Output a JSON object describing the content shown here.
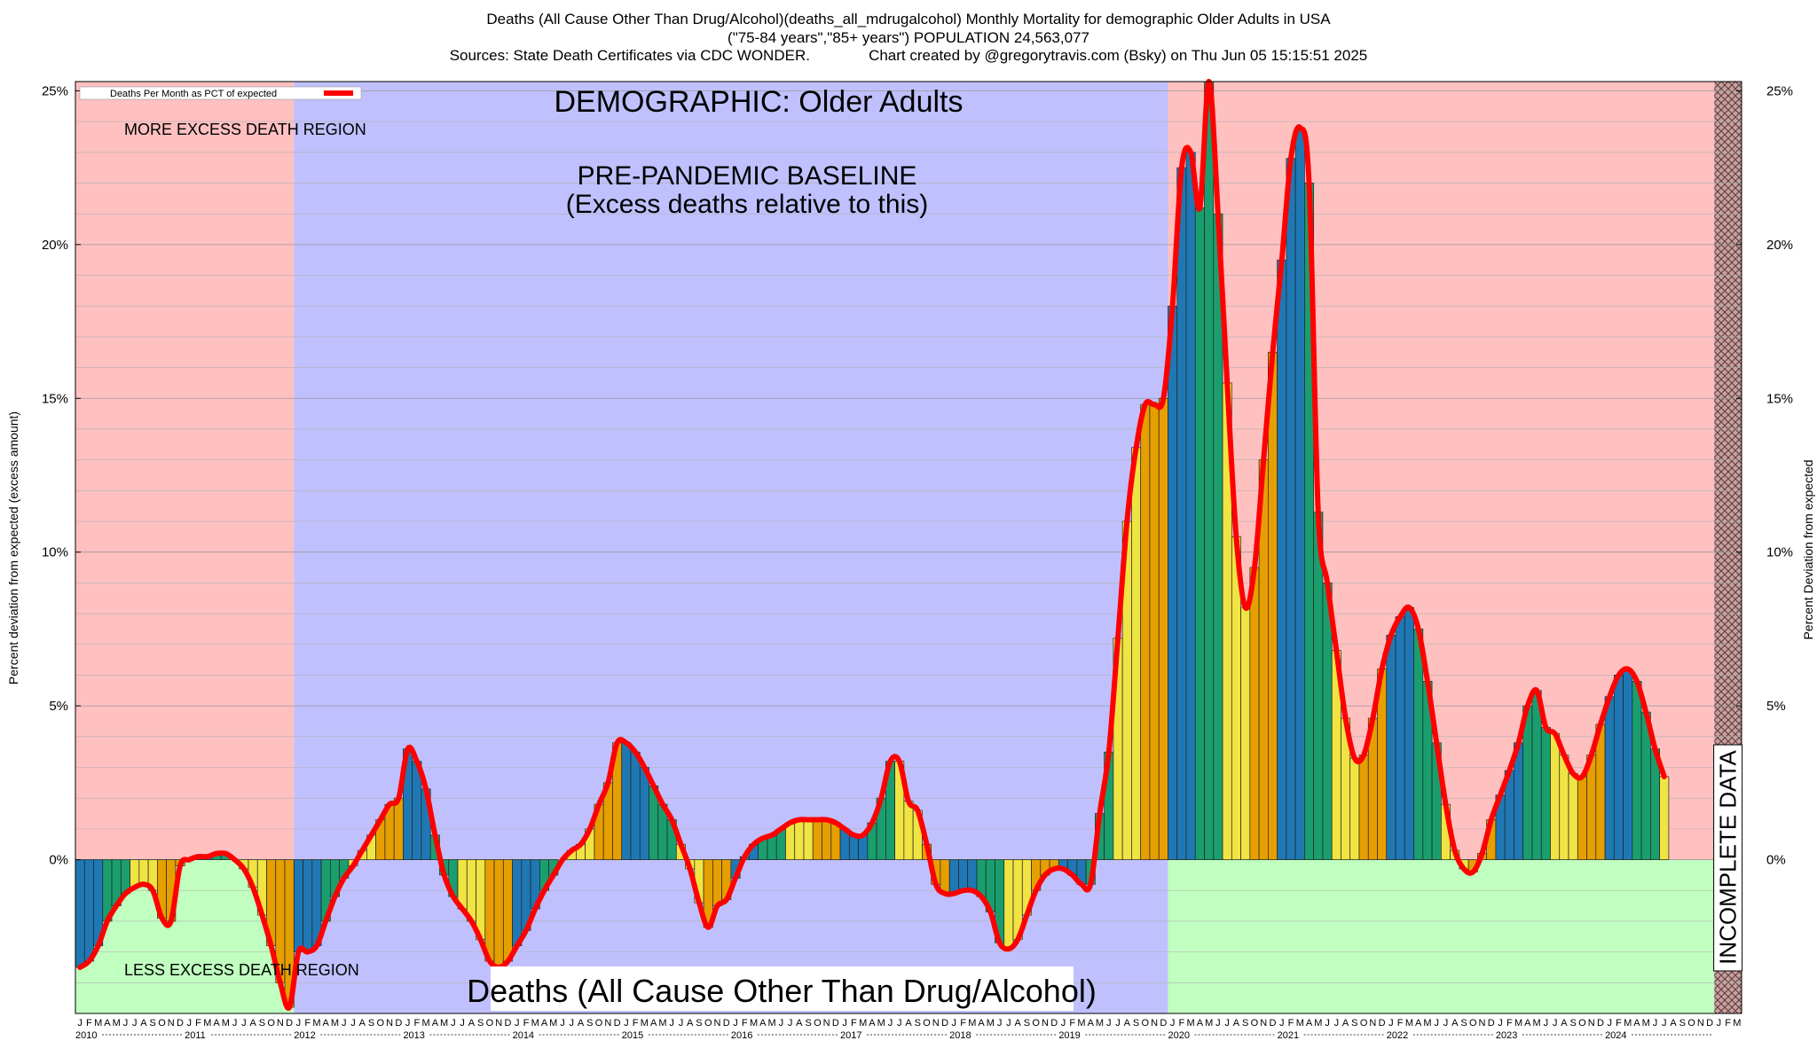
{
  "header": {
    "title_line1": "Deaths (All Cause Other Than Drug/Alcohol)(deaths_all_mdrugalcohol) Monthly Mortality for demographic Older Adults in USA",
    "title_line2": "(\"75-84 years\",\"85+ years\") POPULATION 24,563,077",
    "title_line3": "Sources: State Death Certificates via CDC WONDER.              Chart created by @gregorytravis.com (Bsky) on Thu Jun 05 15:15:51 2025"
  },
  "chart_data": {
    "type": "bar",
    "x_unit": "month",
    "x_start": "2010-01",
    "x_end": "2025-03",
    "xtick_month_letters": [
      "J",
      "F",
      "M",
      "A",
      "M",
      "J",
      "J",
      "A",
      "S",
      "O",
      "N",
      "D"
    ],
    "year_labels": [
      "2010",
      "2011",
      "2012",
      "2013",
      "2014",
      "2015",
      "2016",
      "2017",
      "2018",
      "2019",
      "2020",
      "2021",
      "2022",
      "2023",
      "2024"
    ],
    "ylabel_left": "Percent deviation from expected (excess amount)",
    "ylabel_right": "Percent Deviation from expected",
    "ylim": [
      -5,
      25.3
    ],
    "yticks": [
      0,
      5,
      10,
      15,
      20,
      25
    ],
    "ytick_labels": [
      "0%",
      "5%",
      "10%",
      "15%",
      "20%",
      "25%"
    ],
    "grid": true,
    "legend": {
      "label": "Deaths Per Month as PCT of expected",
      "color": "#ff0000",
      "placement": "top-left"
    },
    "bar_colors": [
      "#1f78b4",
      "#1a9e6e",
      "#f0e442",
      "#e69f00"
    ],
    "line_color": "#ff0000",
    "region_colors": {
      "more_excess": "#ffc0c0",
      "baseline": "#c0c0ff",
      "less_excess": "#c0ffc0"
    },
    "annotations": {
      "demographic": "DEMOGRAPHIC: Older Adults",
      "baseline_line1": "PRE-PANDEMIC BASELINE",
      "baseline_line2": "(Excess deaths relative to this)",
      "more_excess": "MORE EXCESS DEATH REGION",
      "less_excess": "LESS EXCESS DEATH REGION",
      "incomplete": "INCOMPLETE DATA",
      "bottom_title": "Deaths (All Cause Other Than Drug/Alcohol)"
    },
    "baseline_start": "2012-01",
    "baseline_end": "2019-12",
    "incomplete_start": "2025-01",
    "series": [
      {
        "name": "Deaths Per Month as PCT of expected",
        "values": [
          -3.5,
          -3.3,
          -2.8,
          -2.0,
          -1.5,
          -1.1,
          -0.9,
          -0.8,
          -1.0,
          -1.9,
          -2.0,
          -0.2,
          0.0,
          0.1,
          0.1,
          0.2,
          0.2,
          0.0,
          -0.3,
          -0.9,
          -1.8,
          -2.8,
          -4.0,
          -4.8,
          -3.0,
          -3.0,
          -2.8,
          -2.0,
          -1.2,
          -0.6,
          -0.2,
          0.3,
          0.8,
          1.3,
          1.8,
          2.0,
          3.6,
          3.2,
          2.3,
          0.8,
          -0.5,
          -1.2,
          -1.6,
          -2.0,
          -2.6,
          -3.3,
          -3.5,
          -3.3,
          -2.8,
          -2.3,
          -1.6,
          -1.0,
          -0.5,
          0.0,
          0.3,
          0.5,
          1.0,
          1.8,
          2.5,
          3.8,
          3.8,
          3.5,
          3.0,
          2.4,
          1.8,
          1.3,
          0.5,
          -0.3,
          -1.4,
          -2.2,
          -1.5,
          -1.3,
          -0.6,
          0.1,
          0.5,
          0.7,
          0.8,
          1.0,
          1.2,
          1.3,
          1.3,
          1.3,
          1.3,
          1.2,
          1.0,
          0.8,
          0.8,
          1.2,
          2.0,
          3.2,
          3.2,
          1.9,
          1.6,
          0.5,
          -0.8,
          -1.1,
          -1.1,
          -1.0,
          -1.0,
          -1.2,
          -1.7,
          -2.7,
          -2.9,
          -2.6,
          -1.8,
          -1.0,
          -0.5,
          -0.3,
          -0.3,
          -0.5,
          -0.8,
          -0.8,
          1.5,
          3.5,
          7.2,
          11.0,
          13.4,
          14.8,
          14.8,
          15.0,
          18.0,
          22.5,
          23.0,
          21.2,
          25.3,
          21.0,
          15.5,
          10.5,
          8.2,
          9.5,
          13.0,
          16.5,
          19.5,
          22.8,
          23.8,
          22.0,
          11.3,
          9.0,
          6.8,
          4.6,
          3.3,
          3.4,
          4.6,
          6.2,
          7.3,
          7.9,
          8.2,
          7.5,
          5.8,
          3.8,
          1.8,
          0.3,
          -0.3,
          -0.4,
          0.2,
          1.3,
          2.1,
          2.9,
          3.8,
          5.0,
          5.5,
          4.3,
          4.1,
          3.4,
          2.8,
          2.7,
          3.4,
          4.4,
          5.3,
          6.0,
          6.2,
          5.8,
          4.8,
          3.6,
          2.7
        ]
      }
    ]
  }
}
